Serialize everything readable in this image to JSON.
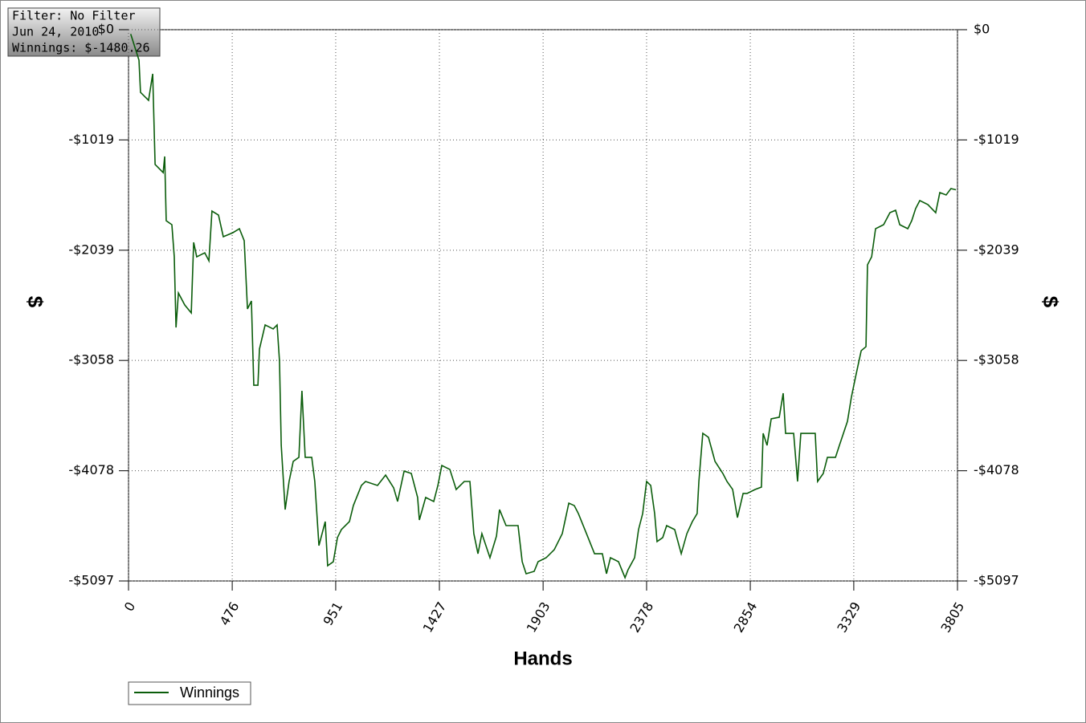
{
  "chart_data": {
    "type": "line",
    "x_label": "Hands",
    "y_label": "$",
    "y2_label": "$",
    "tooltip": [
      "Filter: No Filter",
      "Jun 24, 2010",
      "Winnings: $-1480.26"
    ],
    "xlim": [
      0,
      3805
    ],
    "xticks": [
      0,
      476,
      951,
      1427,
      1903,
      2378,
      2854,
      3329,
      3805
    ],
    "ylim": [
      -5097,
      0
    ],
    "yticks": [
      {
        "value": 0,
        "label": "$0"
      },
      {
        "value": -1019,
        "label": "-$1019"
      },
      {
        "value": -2039,
        "label": "-$2039"
      },
      {
        "value": -3058,
        "label": "-$3058"
      },
      {
        "value": -4078,
        "label": "-$4078"
      },
      {
        "value": -5097,
        "label": "-$5097"
      }
    ],
    "grid": true,
    "legend": "bottom-left",
    "series": [
      {
        "name": "Winnings",
        "color": "#0b5d0b",
        "x": [
          10,
          48,
          55,
          92,
          111,
          122,
          159,
          166,
          173,
          199,
          210,
          218,
          229,
          258,
          288,
          299,
          313,
          350,
          369,
          383,
          413,
          435,
          479,
          509,
          531,
          546,
          564,
          575,
          594,
          601,
          627,
          664,
          682,
          693,
          701,
          719,
          737,
          756,
          782,
          796,
          811,
          841,
          855,
          874,
          903,
          914,
          940,
          959,
          977,
          1014,
          1032,
          1069,
          1088,
          1143,
          1180,
          1217,
          1235,
          1265,
          1298,
          1327,
          1335,
          1364,
          1401,
          1420,
          1438,
          1475,
          1504,
          1541,
          1567,
          1585,
          1604,
          1622,
          1659,
          1689,
          1703,
          1733,
          1788,
          1807,
          1825,
          1862,
          1880,
          1917,
          1954,
          1991,
          2021,
          2046,
          2065,
          2102,
          2139,
          2175,
          2194,
          2212,
          2249,
          2279,
          2293,
          2323,
          2341,
          2360,
          2378,
          2397,
          2415,
          2426,
          2452,
          2470,
          2507,
          2537,
          2563,
          2588,
          2610,
          2618,
          2636,
          2662,
          2692,
          2728,
          2747,
          2773,
          2795,
          2821,
          2839,
          2876,
          2905,
          2913,
          2931,
          2950,
          2987,
          3005,
          3016,
          3053,
          3071,
          3086,
          3152,
          3163,
          3189,
          3208,
          3245,
          3263,
          3300,
          3318,
          3337,
          3363,
          3385,
          3392,
          3411,
          3429,
          3466,
          3495,
          3521,
          3540,
          3577,
          3595,
          3613,
          3632,
          3669,
          3705,
          3724,
          3753,
          3775,
          3798
        ],
        "values": [
          -40,
          -282,
          -579,
          -653,
          -408,
          -1246,
          -1321,
          -1172,
          -1766,
          -1803,
          -2100,
          -2753,
          -2434,
          -2545,
          -2619,
          -1966,
          -2100,
          -2063,
          -2137,
          -1677,
          -1714,
          -1914,
          -1877,
          -1840,
          -1951,
          -2582,
          -2508,
          -3287,
          -3287,
          -2953,
          -2730,
          -2767,
          -2730,
          -3064,
          -3843,
          -4437,
          -4177,
          -3991,
          -3954,
          -3339,
          -3954,
          -3954,
          -4177,
          -4770,
          -4548,
          -4956,
          -4919,
          -4696,
          -4622,
          -4548,
          -4400,
          -4214,
          -4177,
          -4214,
          -4118,
          -4236,
          -4362,
          -4081,
          -4103,
          -4325,
          -4533,
          -4325,
          -4362,
          -4214,
          -4029,
          -4066,
          -4251,
          -4177,
          -4177,
          -4659,
          -4845,
          -4659,
          -4882,
          -4681,
          -4437,
          -4585,
          -4585,
          -4919,
          -5030,
          -5008,
          -4919,
          -4882,
          -4808,
          -4659,
          -4377,
          -4400,
          -4474,
          -4659,
          -4845,
          -4845,
          -5030,
          -4882,
          -4919,
          -5067,
          -4993,
          -4882,
          -4622,
          -4474,
          -4177,
          -4214,
          -4474,
          -4733,
          -4696,
          -4585,
          -4622,
          -4845,
          -4659,
          -4548,
          -4474,
          -4177,
          -3732,
          -3769,
          -3991,
          -4103,
          -4177,
          -4251,
          -4511,
          -4288,
          -4288,
          -4251,
          -4229,
          -3732,
          -3843,
          -3598,
          -3583,
          -3361,
          -3732,
          -3732,
          -4177,
          -3732,
          -3732,
          -4177,
          -4103,
          -3954,
          -3954,
          -3843,
          -3621,
          -3398,
          -3212,
          -2968,
          -2931,
          -2174,
          -2100,
          -1840,
          -1803,
          -1692,
          -1669,
          -1803,
          -1840,
          -1766,
          -1654,
          -1580,
          -1617,
          -1692,
          -1506,
          -1528,
          -1469,
          -1480
        ]
      }
    ]
  }
}
